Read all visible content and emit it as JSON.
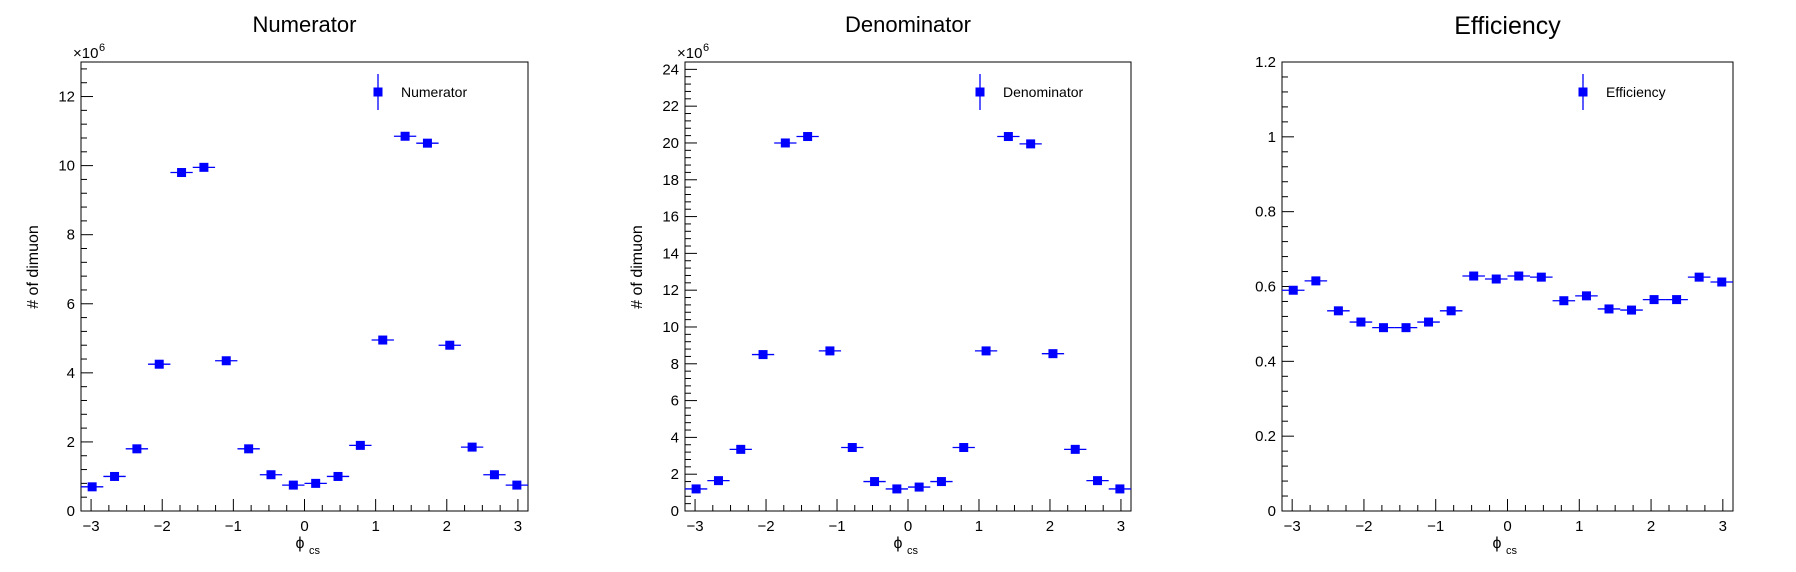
{
  "chart_data": [
    {
      "type": "scatter",
      "title": "Numerator",
      "xlabel": "ϕ",
      "xlabel_sub": "cs",
      "ylabel": "# of dimuon",
      "multiplier": "×10",
      "multiplier_exp": "6",
      "xlim": [
        -3.1416,
        3.1416
      ],
      "ylim": [
        0,
        13
      ],
      "xticks": [
        -3,
        -2,
        -1,
        0,
        1,
        2,
        3
      ],
      "xtick_labels": [
        "−3",
        "−2",
        "−1",
        "0",
        "1",
        "2",
        "3"
      ],
      "yticks": [
        0,
        2,
        4,
        6,
        8,
        10,
        12
      ],
      "ytick_labels": [
        "0",
        "2",
        "4",
        "6",
        "8",
        "10",
        "12"
      ],
      "legend": {
        "label": "Numerator",
        "position": "top-right"
      },
      "color": "#0000ff",
      "series": [
        {
          "name": "Numerator",
          "x": [
            -2.985,
            -2.67,
            -2.356,
            -2.042,
            -1.728,
            -1.414,
            -1.1,
            -0.785,
            -0.471,
            -0.157,
            0.157,
            0.471,
            0.785,
            1.1,
            1.414,
            1.728,
            2.042,
            2.356,
            2.67,
            2.985
          ],
          "values": [
            0.7,
            1.0,
            1.8,
            4.25,
            9.8,
            9.95,
            4.35,
            1.8,
            1.05,
            0.75,
            0.8,
            1.0,
            1.9,
            4.95,
            10.85,
            10.65,
            4.8,
            1.85,
            1.05,
            0.75
          ]
        }
      ]
    },
    {
      "type": "scatter",
      "title": "Denominator",
      "xlabel": "ϕ",
      "xlabel_sub": "cs",
      "ylabel": "# of dimuon",
      "multiplier": "×10",
      "multiplier_exp": "6",
      "xlim": [
        -3.1416,
        3.1416
      ],
      "ylim": [
        0,
        24.4
      ],
      "xticks": [
        -3,
        -2,
        -1,
        0,
        1,
        2,
        3
      ],
      "xtick_labels": [
        "−3",
        "−2",
        "−1",
        "0",
        "1",
        "2",
        "3"
      ],
      "yticks": [
        0,
        2,
        4,
        6,
        8,
        10,
        12,
        14,
        16,
        18,
        20,
        22,
        24
      ],
      "ytick_labels": [
        "0",
        "2",
        "4",
        "6",
        "8",
        "10",
        "12",
        "14",
        "16",
        "18",
        "20",
        "22",
        "24"
      ],
      "legend": {
        "label": "Denominator",
        "position": "top-right"
      },
      "color": "#0000ff",
      "series": [
        {
          "name": "Denominator",
          "x": [
            -2.985,
            -2.67,
            -2.356,
            -2.042,
            -1.728,
            -1.414,
            -1.1,
            -0.785,
            -0.471,
            -0.157,
            0.157,
            0.471,
            0.785,
            1.1,
            1.414,
            1.728,
            2.042,
            2.356,
            2.67,
            2.985
          ],
          "values": [
            1.2,
            1.65,
            3.35,
            8.5,
            20.0,
            20.35,
            8.7,
            3.45,
            1.6,
            1.2,
            1.3,
            1.6,
            3.45,
            8.7,
            20.35,
            19.95,
            8.55,
            3.35,
            1.65,
            1.2
          ]
        }
      ]
    },
    {
      "type": "scatter",
      "title": "Efficiency",
      "xlabel": "ϕ",
      "xlabel_sub": "cs",
      "ylabel": "",
      "xlim": [
        -3.1416,
        3.1416
      ],
      "ylim": [
        0,
        1.2
      ],
      "xticks": [
        -3,
        -2,
        -1,
        0,
        1,
        2,
        3
      ],
      "xtick_labels": [
        "−3",
        "−2",
        "−1",
        "0",
        "1",
        "2",
        "3"
      ],
      "yticks": [
        0,
        0.2,
        0.4,
        0.6,
        0.8,
        1.0,
        1.2
      ],
      "ytick_labels": [
        "0",
        "0.2",
        "0.4",
        "0.6",
        "0.8",
        "1",
        "1.2"
      ],
      "legend": {
        "label": "Efficiency",
        "position": "top-right"
      },
      "color": "#0000ff",
      "series": [
        {
          "name": "Efficiency",
          "x": [
            -2.985,
            -2.67,
            -2.356,
            -2.042,
            -1.728,
            -1.414,
            -1.1,
            -0.785,
            -0.471,
            -0.157,
            0.157,
            0.471,
            0.785,
            1.1,
            1.414,
            1.728,
            2.042,
            2.356,
            2.67,
            2.985
          ],
          "values": [
            0.59,
            0.615,
            0.535,
            0.505,
            0.49,
            0.49,
            0.505,
            0.535,
            0.628,
            0.62,
            0.628,
            0.625,
            0.562,
            0.575,
            0.54,
            0.537,
            0.565,
            0.565,
            0.625,
            0.612
          ]
        }
      ]
    }
  ]
}
